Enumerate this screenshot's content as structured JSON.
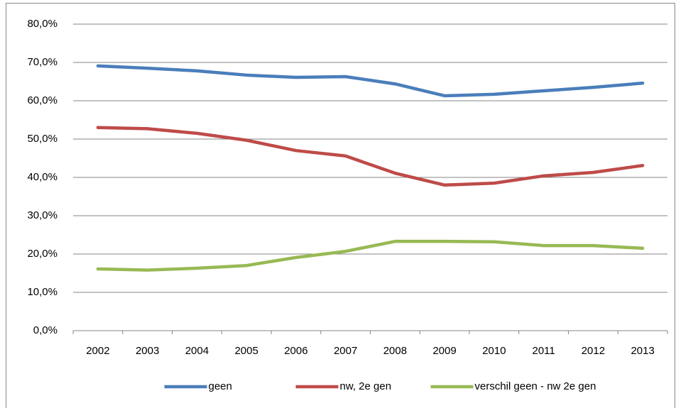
{
  "chart_data": {
    "type": "line",
    "categories": [
      "2002",
      "2003",
      "2004",
      "2005",
      "2006",
      "2007",
      "2008",
      "2009",
      "2010",
      "2011",
      "2012",
      "2013"
    ],
    "series": [
      {
        "name": "geen",
        "color": "#4a7ebb",
        "values": [
          69.1,
          68.5,
          67.8,
          66.7,
          66.1,
          66.3,
          64.4,
          61.3,
          61.7,
          62.6,
          63.5,
          64.6
        ]
      },
      {
        "name": "nw, 2e gen",
        "color": "#be4b48",
        "values": [
          53.0,
          52.7,
          51.5,
          49.7,
          47.0,
          45.6,
          41.1,
          38.0,
          38.5,
          40.4,
          41.3,
          43.1
        ]
      },
      {
        "name": "verschil geen - nw 2e gen",
        "color": "#98b954",
        "values": [
          16.1,
          15.8,
          16.3,
          17.0,
          19.1,
          20.7,
          23.3,
          23.3,
          23.2,
          22.2,
          22.2,
          21.5
        ]
      }
    ],
    "ylim": [
      0,
      80
    ],
    "yticks": [
      {
        "value": 0,
        "label": "0,0%"
      },
      {
        "value": 10,
        "label": "10,0%"
      },
      {
        "value": 20,
        "label": "20,0%"
      },
      {
        "value": 30,
        "label": "30,0%"
      },
      {
        "value": 40,
        "label": "40,0%"
      },
      {
        "value": 50,
        "label": "50,0%"
      },
      {
        "value": 60,
        "label": "60,0%"
      },
      {
        "value": 70,
        "label": "70,0%"
      },
      {
        "value": 80,
        "label": "80,0%"
      }
    ],
    "grid": true,
    "legend": "bottom"
  }
}
